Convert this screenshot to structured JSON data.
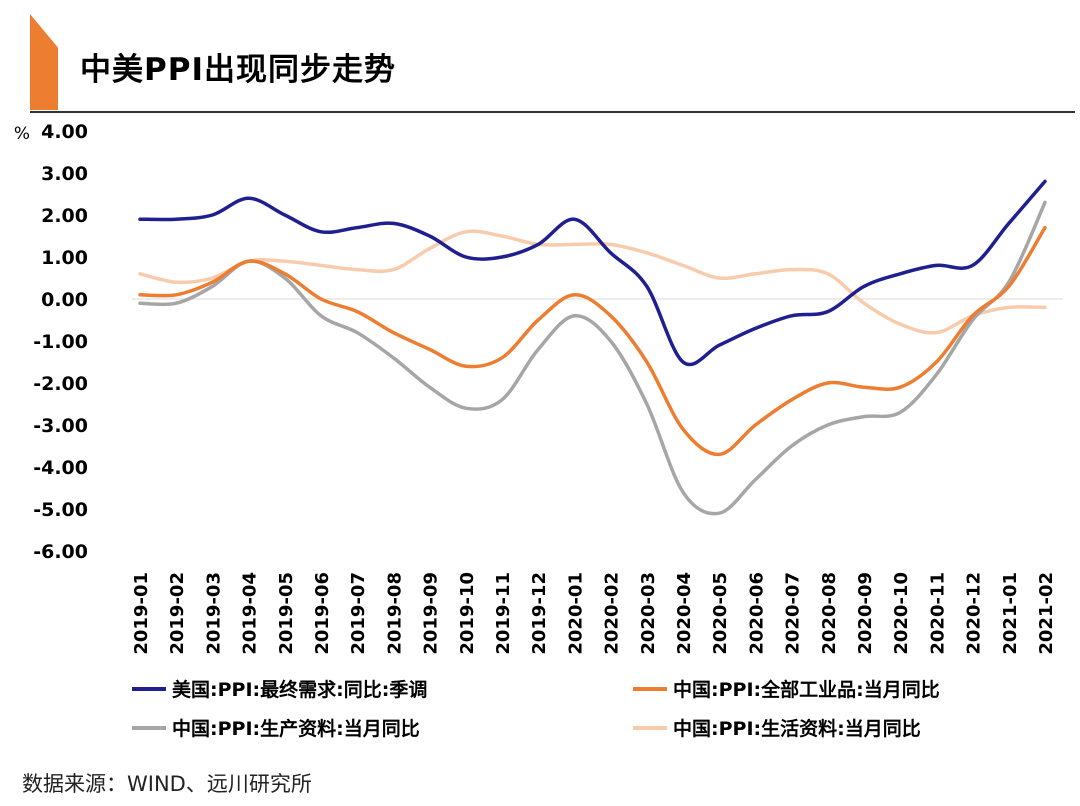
{
  "header": {
    "title": "中美PPI出现同步走势"
  },
  "footer": {
    "source": "数据来源：WIND、远川研究所"
  },
  "colors": {
    "accent": "#ED7D31"
  },
  "chart_data": {
    "type": "line",
    "title": "中美PPI出现同步走势",
    "ylabel": "%",
    "ylim": [
      -6,
      4
    ],
    "yticks": [
      4,
      3,
      2,
      1,
      0,
      -1,
      -2,
      -3,
      -4,
      -5,
      -6
    ],
    "ytick_labels": [
      "4.00",
      "3.00",
      "2.00",
      "1.00",
      "0.00",
      "-1.00",
      "-2.00",
      "-3.00",
      "-4.00",
      "-5.00",
      "-6.00"
    ],
    "categories": [
      "2019-01",
      "2019-02",
      "2019-03",
      "2019-04",
      "2019-05",
      "2019-06",
      "2019-07",
      "2019-08",
      "2019-09",
      "2019-10",
      "2019-11",
      "2019-12",
      "2020-01",
      "2020-02",
      "2020-03",
      "2020-04",
      "2020-05",
      "2020-06",
      "2020-07",
      "2020-08",
      "2020-09",
      "2020-10",
      "2020-11",
      "2020-12",
      "2021-01",
      "2021-02"
    ],
    "zero_line": true,
    "grid": false,
    "legend_position": "bottom",
    "series": [
      {
        "name": "美国:PPI:最终需求:同比:季调",
        "color": "#1F1F8F",
        "values": [
          1.9,
          1.9,
          2.0,
          2.4,
          2.0,
          1.6,
          1.7,
          1.8,
          1.5,
          1.0,
          1.0,
          1.3,
          1.9,
          1.1,
          0.3,
          -1.5,
          -1.1,
          -0.7,
          -0.4,
          -0.3,
          0.3,
          0.6,
          0.8,
          0.8,
          1.8,
          2.8
        ]
      },
      {
        "name": "中国:PPI:全部工业品:当月同比",
        "color": "#ED7D31",
        "values": [
          0.1,
          0.1,
          0.4,
          0.9,
          0.6,
          0.0,
          -0.3,
          -0.8,
          -1.2,
          -1.6,
          -1.4,
          -0.5,
          0.1,
          -0.4,
          -1.5,
          -3.1,
          -3.7,
          -3.0,
          -2.4,
          -2.0,
          -2.1,
          -2.1,
          -1.5,
          -0.4,
          0.3,
          1.7
        ]
      },
      {
        "name": "中国:PPI:生产资料:当月同比",
        "color": "#A6A6A6",
        "values": [
          -0.1,
          -0.1,
          0.3,
          0.9,
          0.5,
          -0.4,
          -0.8,
          -1.4,
          -2.1,
          -2.6,
          -2.4,
          -1.2,
          -0.4,
          -1.0,
          -2.5,
          -4.6,
          -5.1,
          -4.3,
          -3.5,
          -3.0,
          -2.8,
          -2.7,
          -1.8,
          -0.5,
          0.4,
          2.3
        ]
      },
      {
        "name": "中国:PPI:生活资料:当月同比",
        "color": "#F8CBAD",
        "values": [
          0.6,
          0.4,
          0.5,
          0.9,
          0.9,
          0.8,
          0.7,
          0.7,
          1.2,
          1.6,
          1.5,
          1.3,
          1.3,
          1.3,
          1.1,
          0.8,
          0.5,
          0.6,
          0.7,
          0.6,
          -0.1,
          -0.6,
          -0.8,
          -0.4,
          -0.2,
          -0.2
        ]
      }
    ]
  }
}
